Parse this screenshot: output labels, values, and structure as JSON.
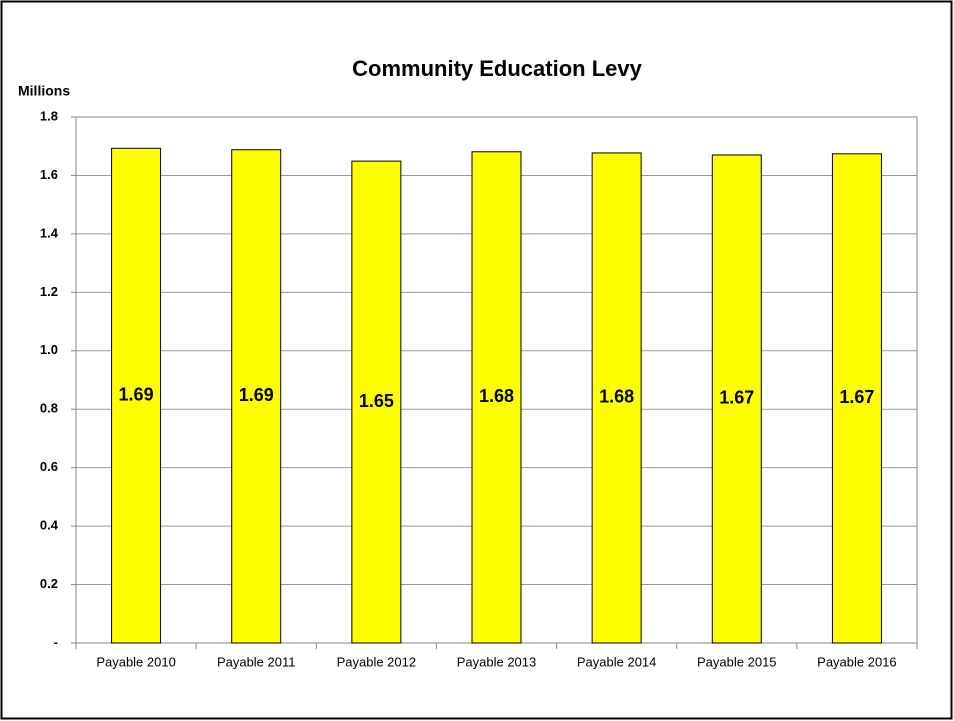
{
  "chart_data": {
    "type": "bar",
    "title": "Community Education Levy",
    "y_label": "Millions",
    "categories": [
      "Payable 2010",
      "Payable 2011",
      "Payable 2012",
      "Payable 2013",
      "Payable 2014",
      "Payable 2015",
      "Payable 2016"
    ],
    "values": [
      1.693,
      1.688,
      1.649,
      1.681,
      1.677,
      1.67,
      1.674
    ],
    "value_labels": [
      "1.69",
      "1.69",
      "1.65",
      "1.68",
      "1.68",
      "1.67",
      "1.67"
    ],
    "color": "#ffff00",
    "ylim": [
      0,
      1.8
    ],
    "yticks": [
      {
        "value": 0,
        "label": "-"
      },
      0.2,
      0.4,
      0.6,
      0.8,
      {
        "value": 1,
        "label": "1.0"
      },
      1.2,
      1.4,
      1.6,
      1.8
    ],
    "grid": true
  }
}
